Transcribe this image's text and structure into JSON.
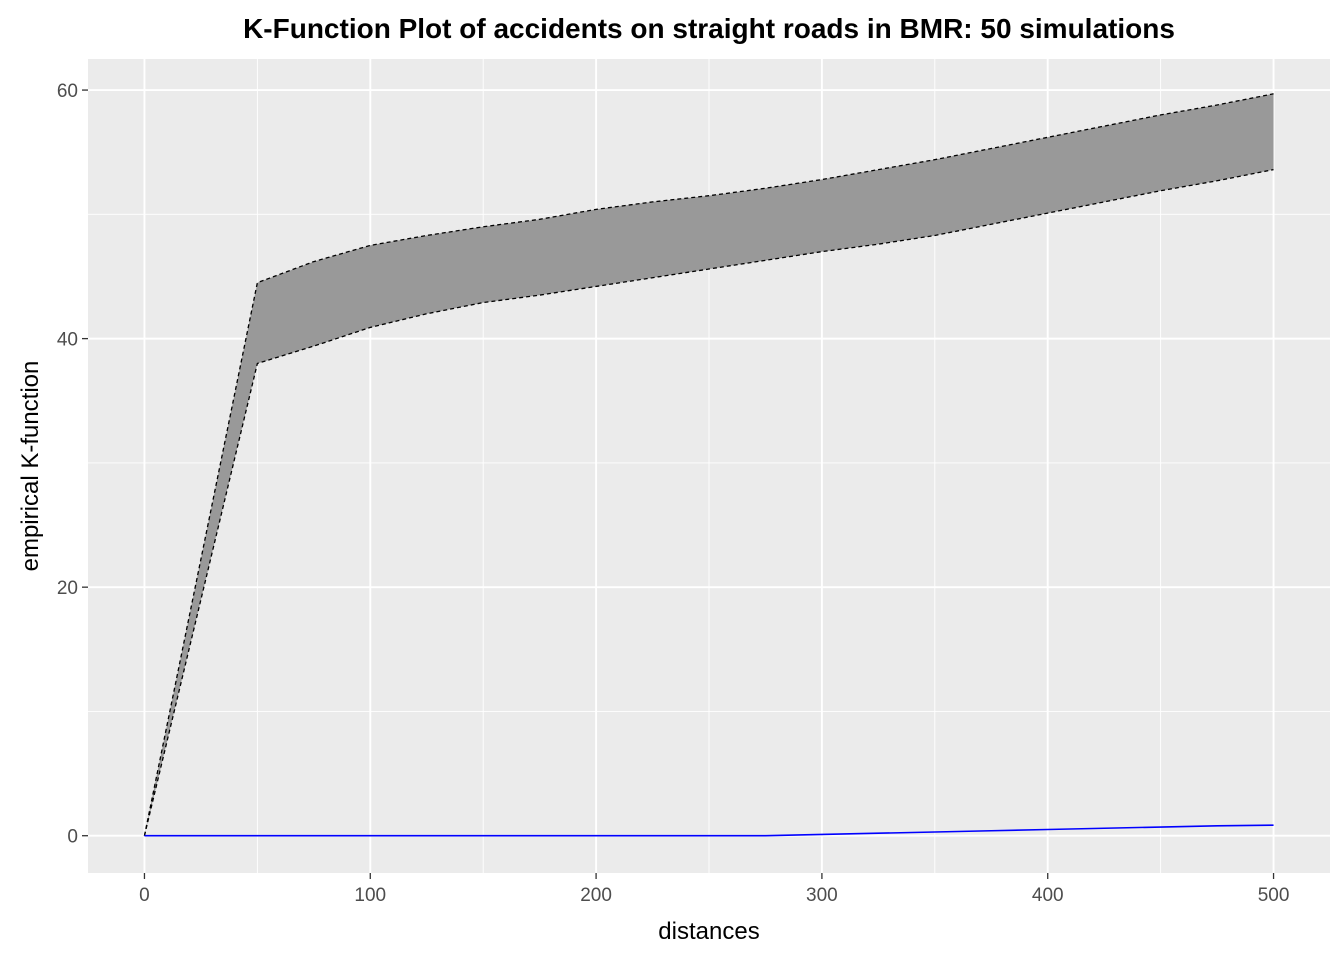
{
  "chart_data": {
    "type": "line",
    "title": "K-Function Plot of accidents on straight roads in BMR: 50 simulations",
    "xlabel": "distances",
    "ylabel": "empirical K-function",
    "xlim": [
      -25,
      525
    ],
    "ylim": [
      -3,
      62.5
    ],
    "x_ticks": [
      0,
      100,
      200,
      300,
      400,
      500
    ],
    "y_ticks": [
      0,
      20,
      40,
      60
    ],
    "x_tick_labels": [
      "0",
      "100",
      "200",
      "300",
      "400",
      "500"
    ],
    "y_tick_labels": [
      "0",
      "20",
      "40",
      "60"
    ],
    "grid": true,
    "x": [
      0,
      50,
      75,
      100,
      125,
      150,
      175,
      200,
      225,
      250,
      275,
      300,
      325,
      350,
      375,
      400,
      425,
      450,
      475,
      500
    ],
    "series": [
      {
        "role": "envelope-upper",
        "values": [
          0,
          44.5,
          46.2,
          47.5,
          48.3,
          49.0,
          49.6,
          50.4,
          51.0,
          51.5,
          52.1,
          52.8,
          53.6,
          54.4,
          55.3,
          56.2,
          57.1,
          58.0,
          58.8,
          59.7
        ]
      },
      {
        "role": "envelope-lower",
        "values": [
          0,
          38.0,
          39.4,
          40.9,
          42.0,
          42.9,
          43.5,
          44.2,
          44.9,
          45.6,
          46.3,
          47.0,
          47.6,
          48.3,
          49.2,
          50.1,
          51.0,
          51.9,
          52.7,
          53.6
        ]
      },
      {
        "role": "observed",
        "color": "#0000ff",
        "values": [
          0,
          0,
          0,
          0,
          0,
          0,
          0,
          0,
          0,
          0,
          0,
          0.1,
          0.2,
          0.3,
          0.4,
          0.5,
          0.6,
          0.7,
          0.8,
          0.85
        ]
      }
    ],
    "colors": {
      "panel": "#ebebeb",
      "grid_major": "#ffffff",
      "envelope_fill": "#999999",
      "envelope_line": "#000000",
      "observed_line": "#0000ff"
    }
  }
}
